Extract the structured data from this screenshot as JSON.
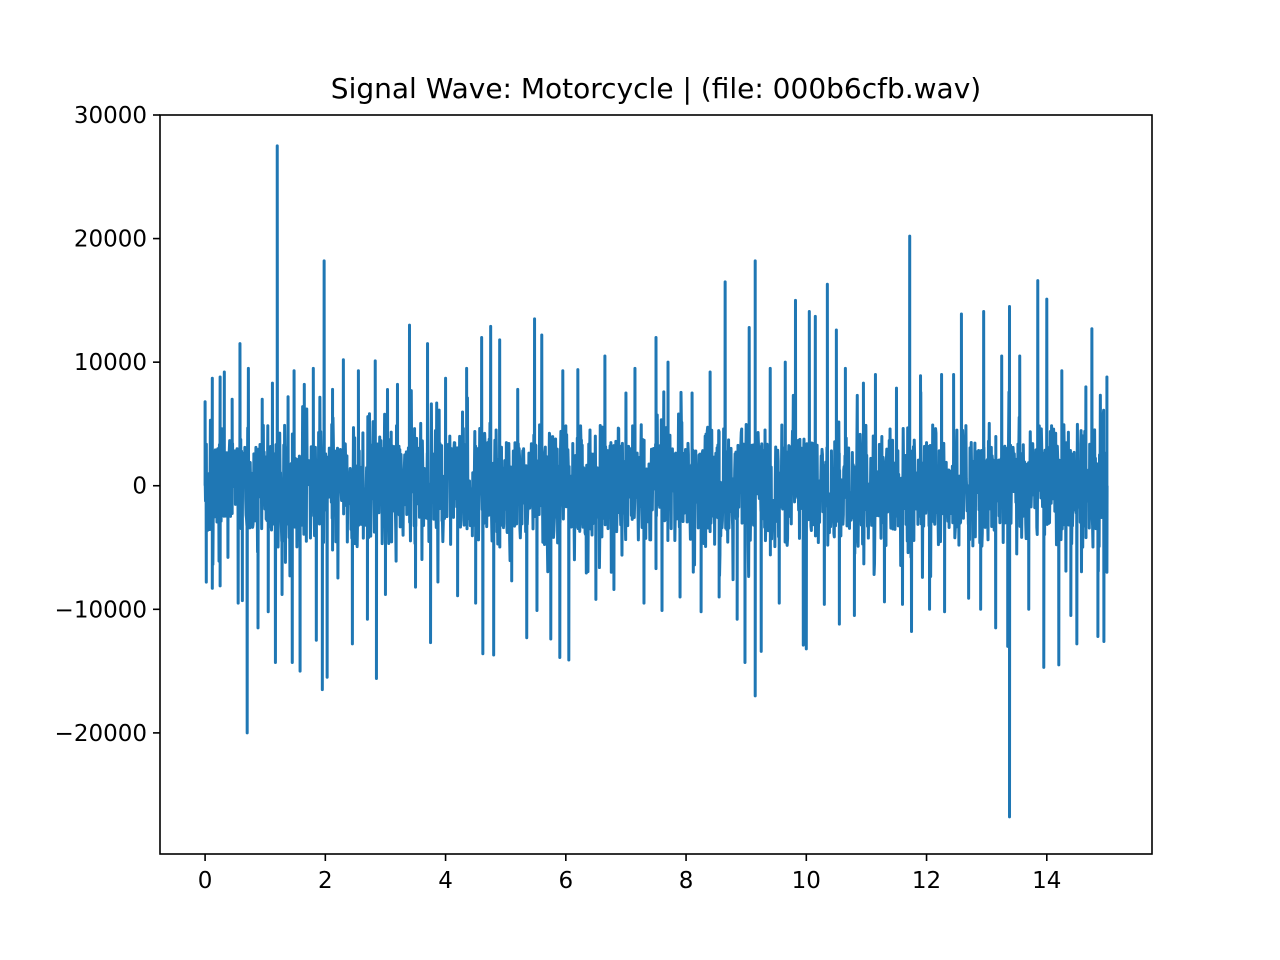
{
  "chart_data": {
    "type": "line",
    "title": "Signal Wave: Motorcycle | (file: 000b6cfb.wav)",
    "xlabel": "",
    "ylabel": "",
    "xlim": [
      -0.75,
      15.75
    ],
    "ylim": [
      -29800,
      30000
    ],
    "xticks": [
      0,
      2,
      4,
      6,
      8,
      10,
      12,
      14
    ],
    "xtick_labels": [
      "0",
      "2",
      "4",
      "6",
      "8",
      "10",
      "12",
      "14"
    ],
    "yticks": [
      30000,
      20000,
      10000,
      0,
      -10000,
      -20000
    ],
    "ytick_labels": [
      "30000",
      "20000",
      "10000",
      "0",
      "−10000",
      "−20000"
    ],
    "grid": false,
    "legend": "none",
    "series": [
      {
        "color": "#1f77b4",
        "x_range": [
          0,
          15
        ],
        "typical_amplitude": [
          -5000,
          5000
        ],
        "peaks": [
          {
            "x": 0.0,
            "y": 6800
          },
          {
            "x": 0.02,
            "y": -7800
          },
          {
            "x": 0.12,
            "y": 8700
          },
          {
            "x": 0.12,
            "y": -8300
          },
          {
            "x": 0.25,
            "y": 8800
          },
          {
            "x": 0.25,
            "y": -8100
          },
          {
            "x": 0.32,
            "y": 9200
          },
          {
            "x": 0.38,
            "y": -5800
          },
          {
            "x": 0.45,
            "y": 7000
          },
          {
            "x": 0.55,
            "y": -9500
          },
          {
            "x": 0.58,
            "y": 11500
          },
          {
            "x": 0.62,
            "y": -9300
          },
          {
            "x": 0.7,
            "y": -20000
          },
          {
            "x": 0.72,
            "y": 9500
          },
          {
            "x": 0.88,
            "y": -11500
          },
          {
            "x": 0.95,
            "y": 7000
          },
          {
            "x": 1.05,
            "y": -10200
          },
          {
            "x": 1.12,
            "y": 8300
          },
          {
            "x": 1.17,
            "y": -14300
          },
          {
            "x": 1.2,
            "y": 27500
          },
          {
            "x": 1.28,
            "y": -8800
          },
          {
            "x": 1.38,
            "y": 7200
          },
          {
            "x": 1.45,
            "y": -14300
          },
          {
            "x": 1.48,
            "y": 9300
          },
          {
            "x": 1.58,
            "y": -15000
          },
          {
            "x": 1.65,
            "y": 8200
          },
          {
            "x": 1.8,
            "y": 9500
          },
          {
            "x": 1.85,
            "y": -12500
          },
          {
            "x": 1.95,
            "y": -16500
          },
          {
            "x": 1.98,
            "y": 18200
          },
          {
            "x": 2.03,
            "y": -15500
          },
          {
            "x": 2.12,
            "y": 7800
          },
          {
            "x": 2.3,
            "y": 10200
          },
          {
            "x": 2.45,
            "y": -12800
          },
          {
            "x": 2.55,
            "y": 9300
          },
          {
            "x": 2.7,
            "y": -10800
          },
          {
            "x": 2.83,
            "y": 10100
          },
          {
            "x": 2.85,
            "y": -15600
          },
          {
            "x": 3.0,
            "y": -8800
          },
          {
            "x": 3.2,
            "y": 8200
          },
          {
            "x": 3.4,
            "y": 13000
          },
          {
            "x": 3.5,
            "y": -8200
          },
          {
            "x": 3.7,
            "y": 11500
          },
          {
            "x": 3.75,
            "y": -12700
          },
          {
            "x": 4.0,
            "y": 8700
          },
          {
            "x": 4.2,
            "y": -8900
          },
          {
            "x": 4.35,
            "y": 9500
          },
          {
            "x": 4.5,
            "y": -9500
          },
          {
            "x": 4.6,
            "y": 12000
          },
          {
            "x": 4.62,
            "y": -13600
          },
          {
            "x": 4.75,
            "y": 12900
          },
          {
            "x": 4.8,
            "y": -13700
          },
          {
            "x": 4.9,
            "y": 11800
          },
          {
            "x": 5.1,
            "y": -7700
          },
          {
            "x": 5.2,
            "y": 7800
          },
          {
            "x": 5.35,
            "y": -12300
          },
          {
            "x": 5.48,
            "y": 13500
          },
          {
            "x": 5.52,
            "y": -10100
          },
          {
            "x": 5.6,
            "y": 12200
          },
          {
            "x": 5.75,
            "y": -12400
          },
          {
            "x": 5.9,
            "y": -13900
          },
          {
            "x": 5.95,
            "y": 9300
          },
          {
            "x": 6.05,
            "y": -14100
          },
          {
            "x": 6.2,
            "y": 9400
          },
          {
            "x": 6.5,
            "y": -9200
          },
          {
            "x": 6.65,
            "y": 10500
          },
          {
            "x": 6.8,
            "y": -8400
          },
          {
            "x": 7.0,
            "y": 7500
          },
          {
            "x": 7.15,
            "y": 9500
          },
          {
            "x": 7.3,
            "y": -9500
          },
          {
            "x": 7.5,
            "y": 12000
          },
          {
            "x": 7.6,
            "y": -10100
          },
          {
            "x": 7.7,
            "y": 10000
          },
          {
            "x": 7.9,
            "y": -9000
          },
          {
            "x": 8.1,
            "y": 7500
          },
          {
            "x": 8.25,
            "y": -10200
          },
          {
            "x": 8.4,
            "y": 9200
          },
          {
            "x": 8.55,
            "y": -9000
          },
          {
            "x": 8.65,
            "y": 16500
          },
          {
            "x": 8.85,
            "y": -10800
          },
          {
            "x": 8.98,
            "y": -14300
          },
          {
            "x": 9.05,
            "y": 12800
          },
          {
            "x": 9.15,
            "y": 18200
          },
          {
            "x": 9.15,
            "y": -17000
          },
          {
            "x": 9.25,
            "y": -13400
          },
          {
            "x": 9.4,
            "y": 9500
          },
          {
            "x": 9.55,
            "y": -9500
          },
          {
            "x": 9.65,
            "y": 10000
          },
          {
            "x": 9.82,
            "y": 15000
          },
          {
            "x": 9.95,
            "y": -12900
          },
          {
            "x": 10.0,
            "y": -13200
          },
          {
            "x": 10.05,
            "y": 14100
          },
          {
            "x": 10.15,
            "y": 13700
          },
          {
            "x": 10.3,
            "y": -9600
          },
          {
            "x": 10.35,
            "y": 16300
          },
          {
            "x": 10.5,
            "y": 12600
          },
          {
            "x": 10.55,
            "y": -11200
          },
          {
            "x": 10.65,
            "y": 9500
          },
          {
            "x": 10.8,
            "y": -10500
          },
          {
            "x": 10.95,
            "y": 8300
          },
          {
            "x": 11.15,
            "y": 9000
          },
          {
            "x": 11.3,
            "y": -9400
          },
          {
            "x": 11.5,
            "y": 7900
          },
          {
            "x": 11.6,
            "y": -9600
          },
          {
            "x": 11.72,
            "y": 20200
          },
          {
            "x": 11.75,
            "y": -11800
          },
          {
            "x": 11.9,
            "y": 8900
          },
          {
            "x": 12.05,
            "y": -10000
          },
          {
            "x": 12.25,
            "y": 9000
          },
          {
            "x": 12.3,
            "y": -10200
          },
          {
            "x": 12.45,
            "y": 9000
          },
          {
            "x": 12.58,
            "y": 13900
          },
          {
            "x": 12.7,
            "y": -9100
          },
          {
            "x": 12.9,
            "y": -10000
          },
          {
            "x": 12.95,
            "y": 14100
          },
          {
            "x": 13.15,
            "y": -11500
          },
          {
            "x": 13.25,
            "y": 10500
          },
          {
            "x": 13.35,
            "y": -13000
          },
          {
            "x": 13.38,
            "y": 14500
          },
          {
            "x": 13.38,
            "y": -26800
          },
          {
            "x": 13.55,
            "y": 10500
          },
          {
            "x": 13.7,
            "y": -10000
          },
          {
            "x": 13.85,
            "y": 16600
          },
          {
            "x": 13.95,
            "y": -14700
          },
          {
            "x": 14.0,
            "y": 15100
          },
          {
            "x": 14.2,
            "y": -14500
          },
          {
            "x": 14.25,
            "y": 9300
          },
          {
            "x": 14.4,
            "y": -10500
          },
          {
            "x": 14.5,
            "y": -12800
          },
          {
            "x": 14.65,
            "y": 8000
          },
          {
            "x": 14.75,
            "y": 12700
          },
          {
            "x": 14.85,
            "y": -12200
          },
          {
            "x": 14.95,
            "y": -12600
          },
          {
            "x": 15.0,
            "y": 8800
          },
          {
            "x": 15.0,
            "y": -7000
          }
        ]
      }
    ]
  }
}
